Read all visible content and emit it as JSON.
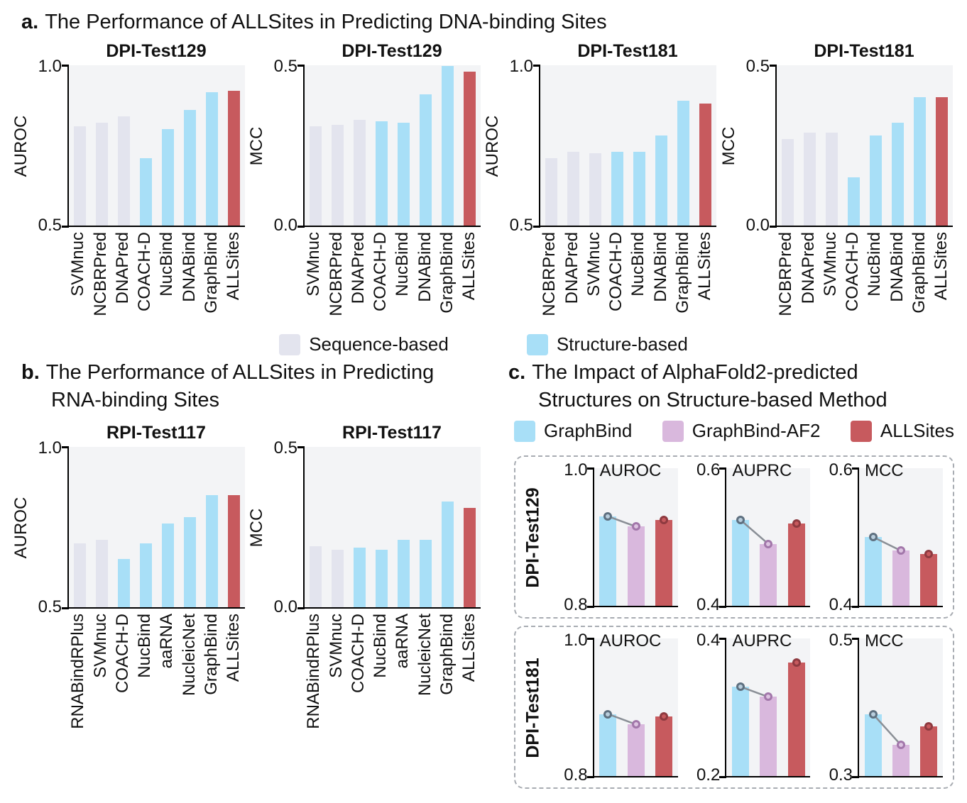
{
  "colors": {
    "sequence": "#e3e4ee",
    "structure": "#a8dff7",
    "allsites": "#c75a5e",
    "af2": "#d9b8dd",
    "marker_fills": {
      "structure": "#b9cedd",
      "af2": "#ddc3e1",
      "allsites": "#c75a5e"
    },
    "marker_strokes": {
      "structure": "#5e7080",
      "af2": "#a277aa",
      "allsites": "#8e3a40"
    },
    "connector": "#8a8f96"
  },
  "panel_a": {
    "label": "a.",
    "title": "The Performance of ALLSites in Predicting DNA-binding Sites"
  },
  "legend_ab": {
    "items": [
      {
        "label": "Sequence-based",
        "color": "sequence"
      },
      {
        "label": "Structure-based",
        "color": "structure"
      }
    ]
  },
  "panel_b": {
    "label": "b.",
    "title_line1": "The Performance of ALLSites in Predicting",
    "title_line2": "RNA-binding Sites"
  },
  "panel_c": {
    "label": "c.",
    "title_line1": "The Impact of AlphaFold2-predicted",
    "title_line2": "Structures on Structure-based Method",
    "legend": [
      {
        "label": "GraphBind",
        "color": "structure"
      },
      {
        "label": "GraphBind-AF2",
        "color": "af2"
      },
      {
        "label": "ALLSites",
        "color": "allsites"
      }
    ],
    "groups": [
      {
        "label": "DPI-Test129"
      },
      {
        "label": "DPI-Test181"
      }
    ]
  },
  "chart_data": [
    {
      "id": "a1",
      "type": "bar",
      "title": "DPI-Test129",
      "ylabel": "AUROC",
      "ylim": [
        0.5,
        1.0
      ],
      "ymax_label": "1.0",
      "ymin_label": "0.5",
      "categories": [
        "SVMnuc",
        "NCBRPred",
        "DNAPred",
        "COACH-D",
        "NucBind",
        "DNABind",
        "GraphBind",
        "ALLSites"
      ],
      "values": [
        0.81,
        0.82,
        0.84,
        0.71,
        0.8,
        0.86,
        0.915,
        0.92
      ],
      "bar_colors": [
        "sequence",
        "sequence",
        "sequence",
        "structure",
        "structure",
        "structure",
        "structure",
        "allsites"
      ]
    },
    {
      "id": "a2",
      "type": "bar",
      "title": "DPI-Test129",
      "ylabel": "MCC",
      "ylim": [
        0.0,
        0.5
      ],
      "ymax_label": "0.5",
      "ymin_label": "0.0",
      "categories": [
        "SVMnuc",
        "NCBRPred",
        "DNAPred",
        "COACH-D",
        "NucBind",
        "DNABind",
        "GraphBind",
        "ALLSites"
      ],
      "values": [
        0.31,
        0.315,
        0.33,
        0.325,
        0.32,
        0.41,
        0.497,
        0.48
      ],
      "bar_colors": [
        "sequence",
        "sequence",
        "sequence",
        "structure",
        "structure",
        "structure",
        "structure",
        "allsites"
      ]
    },
    {
      "id": "a3",
      "type": "bar",
      "title": "DPI-Test181",
      "ylabel": "AUROC",
      "ylim": [
        0.5,
        1.0
      ],
      "ymax_label": "1.0",
      "ymin_label": "0.5",
      "categories": [
        "NCBRPred",
        "DNAPred",
        "SVMnuc",
        "COACH-D",
        "NucBind",
        "DNABind",
        "GraphBind",
        "ALLSites"
      ],
      "values": [
        0.71,
        0.73,
        0.725,
        0.73,
        0.73,
        0.78,
        0.89,
        0.88
      ],
      "bar_colors": [
        "sequence",
        "sequence",
        "sequence",
        "structure",
        "structure",
        "structure",
        "structure",
        "allsites"
      ]
    },
    {
      "id": "a4",
      "type": "bar",
      "title": "DPI-Test181",
      "ylabel": "MCC",
      "ylim": [
        0.0,
        0.5
      ],
      "ymax_label": "0.5",
      "ymin_label": "0.0",
      "categories": [
        "NCBRPred",
        "DNAPred",
        "SVMnuc",
        "COACH-D",
        "NucBind",
        "DNABind",
        "GraphBind",
        "ALLSites"
      ],
      "values": [
        0.27,
        0.29,
        0.29,
        0.15,
        0.28,
        0.32,
        0.4,
        0.4
      ],
      "bar_colors": [
        "sequence",
        "sequence",
        "sequence",
        "structure",
        "structure",
        "structure",
        "structure",
        "allsites"
      ]
    },
    {
      "id": "b1",
      "type": "bar",
      "title": "RPI-Test117",
      "ylabel": "AUROC",
      "ylim": [
        0.5,
        1.0
      ],
      "ymax_label": "1.0",
      "ymin_label": "0.5",
      "categories": [
        "RNABindRPlus",
        "SVMnuc",
        "COACH-D",
        "NucBind",
        "aaRNA",
        "NucleicNet",
        "GraphBind",
        "ALLSites"
      ],
      "values": [
        0.7,
        0.71,
        0.65,
        0.7,
        0.76,
        0.78,
        0.85,
        0.85
      ],
      "bar_colors": [
        "sequence",
        "sequence",
        "structure",
        "structure",
        "structure",
        "structure",
        "structure",
        "allsites"
      ]
    },
    {
      "id": "b2",
      "type": "bar",
      "title": "RPI-Test117",
      "ylabel": "MCC",
      "ylim": [
        0.0,
        0.5
      ],
      "ymax_label": "0.5",
      "ymin_label": "0.0",
      "categories": [
        "RNABindRPlus",
        "SVMnuc",
        "COACH-D",
        "NucBind",
        "aaRNA",
        "NucleicNet",
        "GraphBind",
        "ALLSites"
      ],
      "values": [
        0.19,
        0.18,
        0.185,
        0.18,
        0.21,
        0.21,
        0.33,
        0.31
      ],
      "bar_colors": [
        "sequence",
        "sequence",
        "structure",
        "structure",
        "structure",
        "structure",
        "structure",
        "allsites"
      ]
    },
    {
      "id": "c1",
      "type": "bar",
      "group": "DPI-Test129",
      "title": "AUROC",
      "ylim": [
        0.8,
        1.0
      ],
      "ymax_label": "1.0",
      "ymin_label": "0.8",
      "categories": [
        "GraphBind",
        "GraphBind-AF2",
        "ALLSites"
      ],
      "values": [
        0.93,
        0.915,
        0.925
      ],
      "bar_colors": [
        "structure",
        "af2",
        "allsites"
      ],
      "markers": true,
      "connect": [
        0,
        1
      ]
    },
    {
      "id": "c2",
      "type": "bar",
      "group": "DPI-Test129",
      "title": "AUPRC",
      "ylim": [
        0.4,
        0.6
      ],
      "ymax_label": "0.6",
      "ymin_label": "0.4",
      "categories": [
        "GraphBind",
        "GraphBind-AF2",
        "ALLSites"
      ],
      "values": [
        0.525,
        0.49,
        0.52
      ],
      "bar_colors": [
        "structure",
        "af2",
        "allsites"
      ],
      "markers": true,
      "connect": [
        0,
        1
      ]
    },
    {
      "id": "c3",
      "type": "bar",
      "group": "DPI-Test129",
      "title": "MCC",
      "ylim": [
        0.4,
        0.6
      ],
      "ymax_label": "0.6",
      "ymin_label": "0.4",
      "categories": [
        "GraphBind",
        "GraphBind-AF2",
        "ALLSites"
      ],
      "values": [
        0.5,
        0.48,
        0.475
      ],
      "bar_colors": [
        "structure",
        "af2",
        "allsites"
      ],
      "markers": true,
      "connect": [
        0,
        1
      ]
    },
    {
      "id": "c4",
      "type": "bar",
      "group": "DPI-Test181",
      "title": "AUROC",
      "ylim": [
        0.8,
        1.0
      ],
      "ymax_label": "1.0",
      "ymin_label": "0.8",
      "categories": [
        "GraphBind",
        "GraphBind-AF2",
        "ALLSites"
      ],
      "values": [
        0.89,
        0.875,
        0.887
      ],
      "bar_colors": [
        "structure",
        "af2",
        "allsites"
      ],
      "markers": true,
      "connect": [
        0,
        1
      ]
    },
    {
      "id": "c5",
      "type": "bar",
      "group": "DPI-Test181",
      "title": "AUPRC",
      "ylim": [
        0.2,
        0.4
      ],
      "ymax_label": "0.4",
      "ymin_label": "0.2",
      "categories": [
        "GraphBind",
        "GraphBind-AF2",
        "ALLSites"
      ],
      "values": [
        0.33,
        0.315,
        0.365
      ],
      "bar_colors": [
        "structure",
        "af2",
        "allsites"
      ],
      "markers": true,
      "connect": [
        0,
        1
      ]
    },
    {
      "id": "c6",
      "type": "bar",
      "group": "DPI-Test181",
      "title": "MCC",
      "ylim": [
        0.3,
        0.5
      ],
      "ymax_label": "0.5",
      "ymin_label": "0.3",
      "categories": [
        "GraphBind",
        "GraphBind-AF2",
        "ALLSites"
      ],
      "values": [
        0.39,
        0.345,
        0.372
      ],
      "bar_colors": [
        "structure",
        "af2",
        "allsites"
      ],
      "markers": true,
      "connect": [
        0,
        1
      ]
    }
  ]
}
